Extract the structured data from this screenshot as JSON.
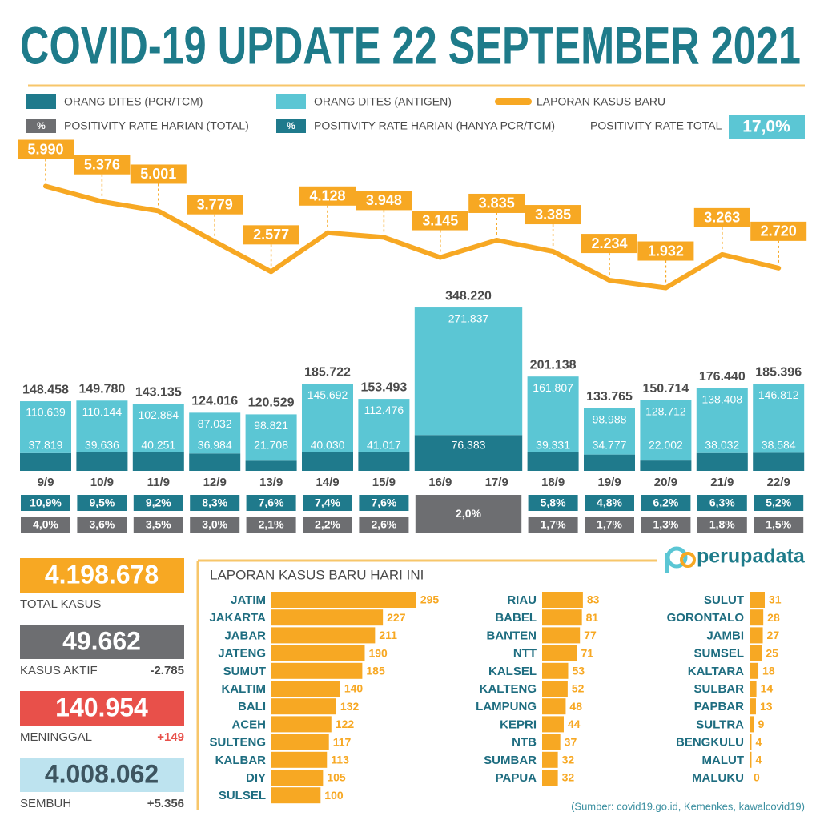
{
  "title": "COVID-19 UPDATE 22 SEPTEMBER 2021",
  "chart_data": [
    {
      "type": "bar",
      "stacked": true,
      "categories": [
        "9/9",
        "10/9",
        "11/9",
        "12/9",
        "13/9",
        "14/9",
        "15/9",
        "16/9",
        "17/9",
        "18/9",
        "19/9",
        "20/9",
        "21/9",
        "22/9"
      ],
      "series": [
        {
          "name": "ORANG DITES (PCR/TCM)",
          "type": "bar",
          "color": "#1f7a8c",
          "values": [
            37819,
            39636,
            40251,
            36984,
            21708,
            40030,
            41017,
            76383,
            null,
            39331,
            34777,
            22002,
            38032,
            38584
          ],
          "value_labels": [
            "37.819",
            "39.636",
            "40.251",
            "36.984",
            "21.708",
            "40.030",
            "41.017",
            "76.383",
            null,
            "39.331",
            "34.777",
            "22.002",
            "38.032",
            "38.584"
          ]
        },
        {
          "name": "ORANG DITES (ANTIGEN)",
          "type": "bar",
          "color": "#5bc6d4",
          "values": [
            110639,
            110144,
            102884,
            87032,
            98821,
            145692,
            112476,
            271837,
            null,
            161807,
            98988,
            128712,
            138408,
            146812
          ],
          "value_labels": [
            "110.639",
            "110.144",
            "102.884",
            "87.032",
            "98.821",
            "145.692",
            "112.476",
            "271.837",
            null,
            "161.807",
            "98.988",
            "128.712",
            "138.408",
            "146.812"
          ]
        },
        {
          "name": "LAPORAN KASUS BARU",
          "type": "line",
          "color": "#f7a823",
          "values": [
            5990,
            5376,
            5001,
            3779,
            2577,
            4128,
            3948,
            3145,
            3835,
            3385,
            2234,
            1932,
            3263,
            2720
          ],
          "value_labels": [
            "5.990",
            "5.376",
            "5.001",
            "3.779",
            "2.577",
            "4.128",
            "3.948",
            "3.145",
            "3.835",
            "3.385",
            "2.234",
            "1.932",
            "3.263",
            "2.720"
          ]
        }
      ],
      "totals": {
        "values": [
          148458,
          149780,
          143135,
          124016,
          120529,
          185722,
          153493,
          348220,
          null,
          201138,
          133765,
          150714,
          176440,
          185396
        ],
        "value_labels": [
          "148.458",
          "149.780",
          "143.135",
          "124.016",
          "120.529",
          "185.722",
          "153.493",
          "348.220",
          null,
          "201.138",
          "133.765",
          "150.714",
          "176.440",
          "185.396"
        ]
      },
      "positivity_symbol": "%",
      "positivity": [
        {
          "name": "POSITIVITY RATE HARIAN (HANYA PCR/TCM)",
          "color": "#1f7a8c",
          "values": [
            10.9,
            9.5,
            9.2,
            8.3,
            7.6,
            7.4,
            7.6,
            null,
            null,
            5.8,
            4.8,
            6.2,
            6.3,
            5.2
          ],
          "value_labels": [
            "10,9%",
            "9,5%",
            "9,2%",
            "8,3%",
            "7,6%",
            "7,4%",
            "7,6%",
            null,
            null,
            "5,8%",
            "4,8%",
            "6,2%",
            "6,3%",
            "5,2%"
          ]
        },
        {
          "name": "POSITIVITY RATE HARIAN (TOTAL)",
          "color": "#6d6e71",
          "values": [
            4.0,
            3.6,
            3.5,
            3.0,
            2.1,
            2.2,
            2.6,
            2.0,
            null,
            1.7,
            1.7,
            1.3,
            1.8,
            1.5
          ],
          "value_labels": [
            "4,0%",
            "3,6%",
            "3,5%",
            "3,0%",
            "2,1%",
            "2,2%",
            "2,6%",
            "2,0%",
            null,
            "1,7%",
            "1,7%",
            "1,3%",
            "1,8%",
            "1,5%"
          ]
        }
      ],
      "positivity_overall": {
        "name": "POSITIVITY RATE TOTAL",
        "value": 17.0,
        "value_label": "17,0%",
        "color": "#5bc6d4"
      }
    },
    {
      "type": "bar",
      "orientation": "horizontal",
      "title": "LAPORAN KASUS BARU HARI INI",
      "color": "#f7a823",
      "categories": [
        "JATIM",
        "JAKARTA",
        "JABAR",
        "JATENG",
        "SUMUT",
        "KALTIM",
        "BALI",
        "ACEH",
        "SULTENG",
        "KALBAR",
        "DIY",
        "SULSEL",
        "RIAU",
        "BABEL",
        "BANTEN",
        "NTT",
        "KALSEL",
        "KALTENG",
        "LAMPUNG",
        "KEPRI",
        "NTB",
        "SUMBAR",
        "PAPUA",
        "SULUT",
        "GORONTALO",
        "JAMBI",
        "SUMSEL",
        "KALTARA",
        "SULBAR",
        "PAPBAR",
        "SULTRA",
        "BENGKULU",
        "MALUT",
        "MALUKU"
      ],
      "values": [
        295,
        227,
        211,
        190,
        185,
        140,
        132,
        122,
        117,
        113,
        105,
        100,
        83,
        81,
        77,
        71,
        53,
        52,
        48,
        44,
        37,
        32,
        32,
        31,
        28,
        27,
        25,
        18,
        14,
        13,
        9,
        4,
        4,
        0
      ]
    }
  ],
  "summary": [
    {
      "value": "4.198.678",
      "label": "TOTAL KASUS"
    },
    {
      "value": "49.662",
      "label": "KASUS AKTIF",
      "change": "-2.785"
    },
    {
      "value": "140.954",
      "label": "MENINGGAL",
      "change": "+149"
    },
    {
      "value": "4.008.062",
      "label": "SEMBUH",
      "change": "+5.356"
    }
  ],
  "logo": "perupadata",
  "source": "(Sumber: covid19.go.id, Kemenkes, kawalcovid19)"
}
